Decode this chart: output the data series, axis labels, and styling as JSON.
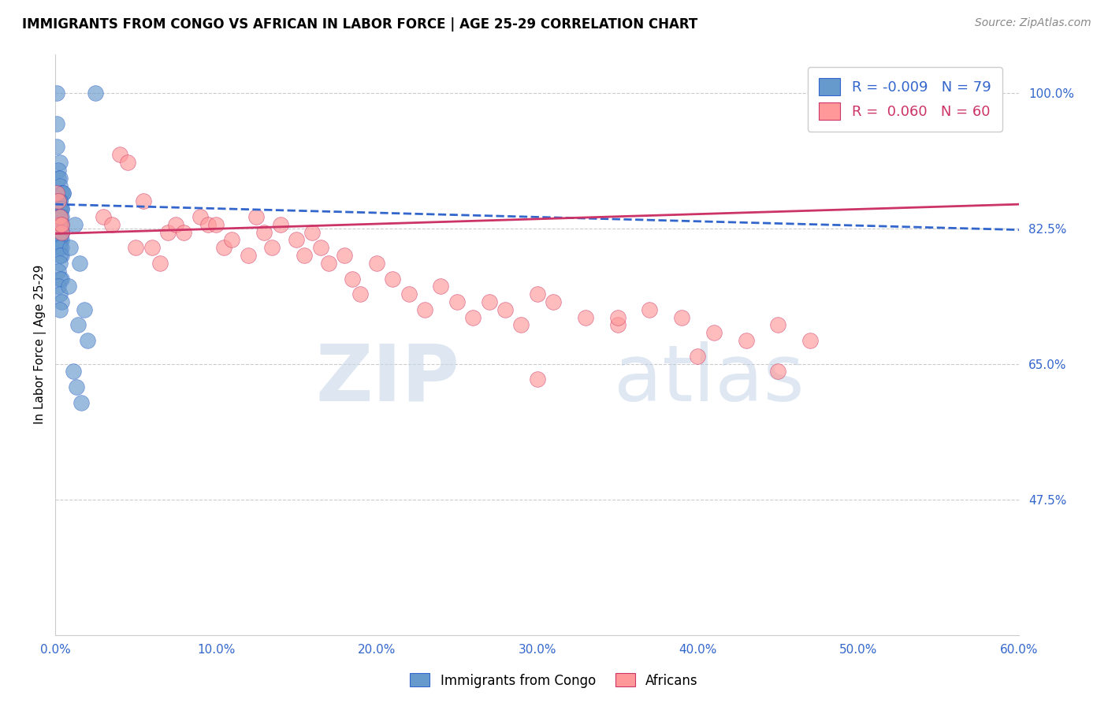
{
  "title": "IMMIGRANTS FROM CONGO VS AFRICAN IN LABOR FORCE | AGE 25-29 CORRELATION CHART",
  "source": "Source: ZipAtlas.com",
  "ylabel": "In Labor Force | Age 25-29",
  "legend_label1": "Immigrants from Congo",
  "legend_label2": "Africans",
  "R1": -0.009,
  "N1": 79,
  "R2": 0.06,
  "N2": 60,
  "xlim": [
    0.0,
    0.6
  ],
  "ylim": [
    0.3,
    1.05
  ],
  "ytick_labels": [
    "47.5%",
    "65.0%",
    "82.5%",
    "100.0%"
  ],
  "ytick_values": [
    0.475,
    0.65,
    0.825,
    1.0
  ],
  "xtick_labels": [
    "0.0%",
    "10.0%",
    "20.0%",
    "30.0%",
    "40.0%",
    "50.0%",
    "60.0%"
  ],
  "xtick_values": [
    0.0,
    0.1,
    0.2,
    0.3,
    0.4,
    0.5,
    0.6
  ],
  "color1": "#6699CC",
  "color2": "#FF9999",
  "line_color1": "#3366CC",
  "line_color2": "#CC3366",
  "watermark_zip": "ZIP",
  "watermark_atlas": "atlas",
  "blue_x": [
    0.001,
    0.025,
    0.001,
    0.001,
    0.003,
    0.002,
    0.002,
    0.003,
    0.003,
    0.004,
    0.004,
    0.005,
    0.005,
    0.003,
    0.002,
    0.003,
    0.002,
    0.004,
    0.003,
    0.002,
    0.003,
    0.004,
    0.002,
    0.003,
    0.003,
    0.002,
    0.002,
    0.003,
    0.004,
    0.003,
    0.003,
    0.002,
    0.004,
    0.003,
    0.003,
    0.002,
    0.003,
    0.003,
    0.004,
    0.002,
    0.003,
    0.004,
    0.002,
    0.003,
    0.003,
    0.004,
    0.002,
    0.003,
    0.003,
    0.004,
    0.003,
    0.002,
    0.003,
    0.004,
    0.002,
    0.003,
    0.004,
    0.002,
    0.003,
    0.004,
    0.003,
    0.003,
    0.002,
    0.004,
    0.003,
    0.002,
    0.003,
    0.004,
    0.003,
    0.012,
    0.009,
    0.015,
    0.008,
    0.018,
    0.014,
    0.02,
    0.011,
    0.013,
    0.016
  ],
  "blue_y": [
    1.0,
    1.0,
    0.96,
    0.93,
    0.91,
    0.9,
    0.89,
    0.89,
    0.88,
    0.87,
    0.87,
    0.87,
    0.87,
    0.86,
    0.86,
    0.86,
    0.86,
    0.85,
    0.85,
    0.85,
    0.85,
    0.85,
    0.84,
    0.84,
    0.84,
    0.84,
    0.84,
    0.84,
    0.84,
    0.83,
    0.83,
    0.83,
    0.83,
    0.83,
    0.83,
    0.83,
    0.83,
    0.83,
    0.83,
    0.83,
    0.83,
    0.82,
    0.82,
    0.82,
    0.82,
    0.82,
    0.82,
    0.82,
    0.82,
    0.82,
    0.82,
    0.81,
    0.81,
    0.81,
    0.81,
    0.81,
    0.8,
    0.8,
    0.8,
    0.79,
    0.79,
    0.78,
    0.77,
    0.76,
    0.76,
    0.75,
    0.74,
    0.73,
    0.72,
    0.83,
    0.8,
    0.78,
    0.75,
    0.72,
    0.7,
    0.68,
    0.64,
    0.62,
    0.6
  ],
  "pink_x": [
    0.001,
    0.002,
    0.003,
    0.004,
    0.003,
    0.004,
    0.03,
    0.035,
    0.04,
    0.045,
    0.05,
    0.055,
    0.06,
    0.065,
    0.07,
    0.075,
    0.08,
    0.09,
    0.095,
    0.1,
    0.105,
    0.11,
    0.12,
    0.125,
    0.13,
    0.135,
    0.14,
    0.15,
    0.155,
    0.16,
    0.165,
    0.17,
    0.18,
    0.185,
    0.19,
    0.2,
    0.21,
    0.22,
    0.23,
    0.24,
    0.25,
    0.26,
    0.27,
    0.28,
    0.29,
    0.3,
    0.31,
    0.33,
    0.35,
    0.37,
    0.39,
    0.41,
    0.43,
    0.45,
    0.47,
    0.3,
    0.35,
    0.4,
    0.45,
    0.58
  ],
  "pink_y": [
    0.87,
    0.86,
    0.83,
    0.82,
    0.84,
    0.83,
    0.84,
    0.83,
    0.92,
    0.91,
    0.8,
    0.86,
    0.8,
    0.78,
    0.82,
    0.83,
    0.82,
    0.84,
    0.83,
    0.83,
    0.8,
    0.81,
    0.79,
    0.84,
    0.82,
    0.8,
    0.83,
    0.81,
    0.79,
    0.82,
    0.8,
    0.78,
    0.79,
    0.76,
    0.74,
    0.78,
    0.76,
    0.74,
    0.72,
    0.75,
    0.73,
    0.71,
    0.73,
    0.72,
    0.7,
    0.74,
    0.73,
    0.71,
    0.7,
    0.72,
    0.71,
    0.69,
    0.68,
    0.7,
    0.68,
    0.63,
    0.71,
    0.66,
    0.64,
    1.0
  ]
}
